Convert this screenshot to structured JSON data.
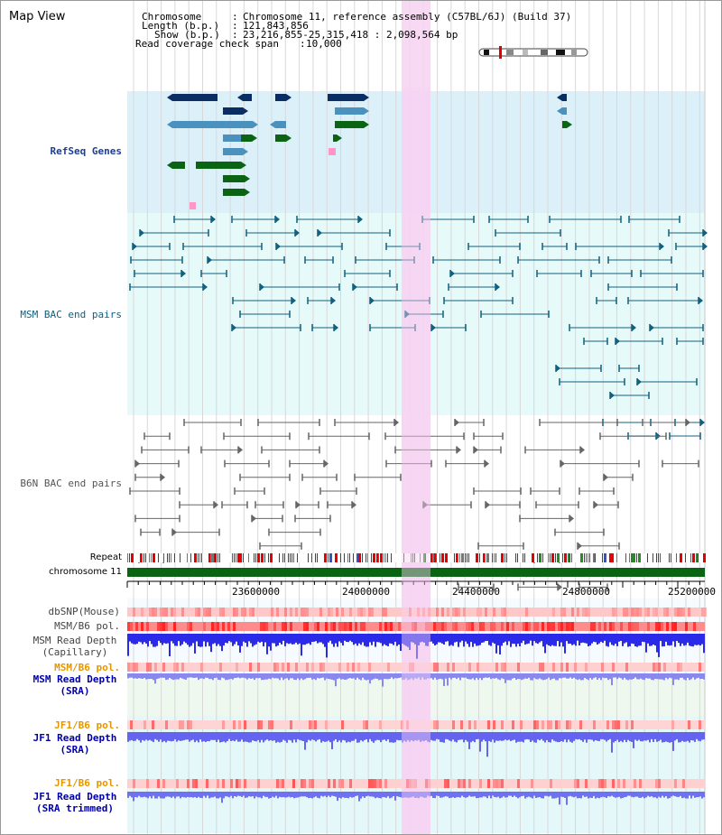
{
  "app_title": "Map View",
  "info": {
    "chromosome_label": "Chromosome",
    "chromosome_value": "Chromosome 11, reference assembly (C57BL/6J) (Build 37)",
    "length_label": "Length (b.p.)",
    "length_value": "121,843,856",
    "show_label": "Show (b.p.)",
    "show_value": "23,216,855-25,315,418 : 2,098,564 bp",
    "span_label": "Read coverage check span",
    "span_value": "10,000"
  },
  "tracks": {
    "refseq": "RefSeq Genes",
    "msm_bac": "MSM BAC end pairs",
    "b6n_bac": "B6N BAC end pairs",
    "repeat": "Repeat",
    "chromosome": "chromosome 11",
    "dbsnp": "dbSNP(Mouse)",
    "msm_pol": "MSM/B6 pol.",
    "msm_depth_cap_1": "MSM Read Depth",
    "msm_depth_cap_2": "(Capillary)",
    "msm_pol_sra": "MSM/B6 pol.",
    "msm_depth_sra_1": "MSM Read Depth",
    "msm_depth_sra_2": "(SRA)",
    "jf1_pol": "JF1/B6 pol.",
    "jf1_depth_1": "JF1 Read Depth",
    "jf1_depth_2": "(SRA)",
    "jf1_pol_tr": "JF1/B6 pol.",
    "jf1_depth_tr_1": "JF1 Read Depth",
    "jf1_depth_tr_2": "(SRA trimmed)"
  },
  "ruler_ticks": [
    "23600000",
    "24000000",
    "24400000",
    "24800000",
    "25200000"
  ],
  "colors": {
    "refseq_bg": "#dcf0fa",
    "msm_bg": "#e6fafa",
    "highlight": "#f7d2f2",
    "gene_dark": "#0a2d64",
    "gene_mid": "#4b91be",
    "gene_green": "#0a6414",
    "gene_pink": "#ff96c8",
    "msm_pair": "#10607e",
    "b6n_pair": "#666666",
    "chrom_bar": "#0a6414",
    "label_orange": "#e69600",
    "label_blue": "#0000aa"
  }
}
